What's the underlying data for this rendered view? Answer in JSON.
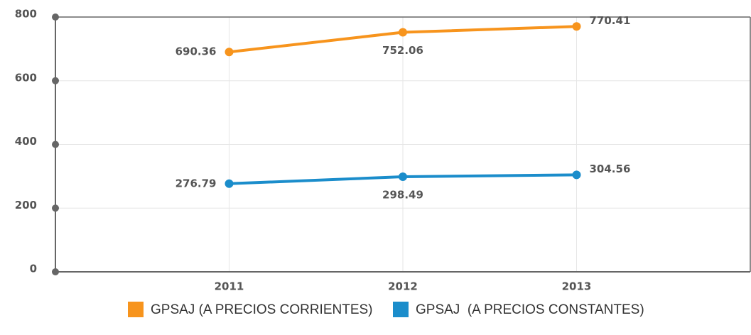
{
  "chart_data": {
    "type": "line",
    "categories": [
      "2011",
      "2012",
      "2013"
    ],
    "series": [
      {
        "name": "GPSAJ (A PRECIOS CORRIENTES)",
        "color": "#f7941d",
        "values": [
          690.36,
          752.06,
          770.41
        ]
      },
      {
        "name": "GPSAJ  (A PRECIOS CONSTANTES)",
        "color": "#1b8dcb",
        "values": [
          276.79,
          298.49,
          304.56
        ]
      }
    ],
    "ylim": [
      0,
      800
    ],
    "yticks": [
      0,
      200,
      400,
      600,
      800
    ],
    "grid": true
  }
}
